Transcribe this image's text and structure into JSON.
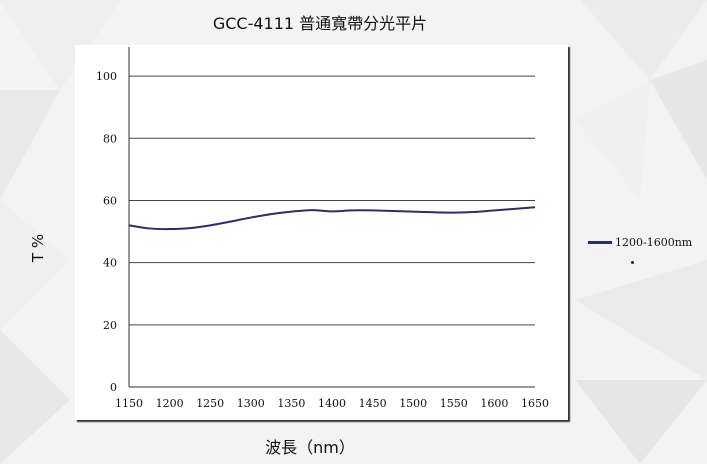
{
  "chart_data": {
    "type": "line",
    "title": "GCC-4111  普通寬帶分光平片",
    "xlabel": "波長（nm）",
    "ylabel": "T %",
    "xlim": [
      1150,
      1650
    ],
    "ylim": [
      0,
      110
    ],
    "x_ticks": [
      1150,
      1200,
      1250,
      1300,
      1350,
      1400,
      1450,
      1500,
      1550,
      1600,
      1650
    ],
    "y_ticks": [
      0,
      20,
      40,
      60,
      80,
      100
    ],
    "grid": "horizontal",
    "legend_position": "right",
    "series": [
      {
        "name": "1200-1600nm",
        "color": "#2b2d6e",
        "x": [
          1150,
          1175,
          1200,
          1225,
          1250,
          1275,
          1300,
          1325,
          1350,
          1375,
          1400,
          1425,
          1450,
          1475,
          1500,
          1525,
          1550,
          1575,
          1600,
          1625,
          1650
        ],
        "y": [
          52.0,
          51.0,
          50.8,
          51.1,
          52.0,
          53.2,
          54.5,
          55.6,
          56.4,
          56.9,
          56.5,
          56.8,
          56.8,
          56.6,
          56.4,
          56.2,
          56.1,
          56.3,
          56.8,
          57.3,
          57.8
        ]
      }
    ]
  }
}
